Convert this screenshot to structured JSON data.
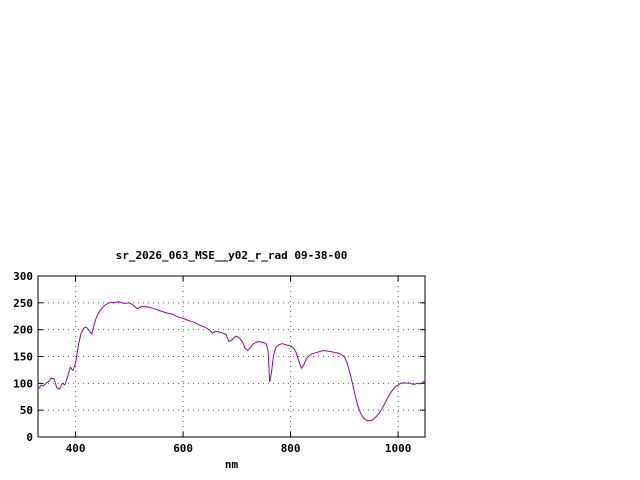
{
  "page": {
    "background": "#ffffff"
  },
  "chart_data": {
    "type": "line",
    "title": "sr_2026_063_MSE__y02_r_rad 09-38-00",
    "xlabel": "nm",
    "ylabel": "",
    "xlim": [
      330,
      1050
    ],
    "ylim": [
      0,
      300
    ],
    "xticks": [
      400,
      600,
      800,
      1000
    ],
    "yticks": [
      0,
      50,
      100,
      150,
      200,
      250,
      300
    ],
    "grid": true,
    "legend": false,
    "axis_color": "#000000",
    "grid_color": "#606060",
    "series": [
      {
        "name": "spectral_radiance",
        "color": "#a000a0",
        "x": [
          332,
          336,
          340,
          345,
          350,
          355,
          360,
          365,
          370,
          375,
          380,
          385,
          390,
          395,
          400,
          405,
          410,
          415,
          420,
          425,
          430,
          435,
          440,
          445,
          450,
          455,
          460,
          465,
          470,
          480,
          490,
          500,
          505,
          510,
          515,
          520,
          525,
          530,
          540,
          550,
          560,
          570,
          580,
          590,
          600,
          610,
          620,
          630,
          640,
          650,
          655,
          660,
          665,
          670,
          680,
          685,
          690,
          695,
          700,
          705,
          710,
          715,
          720,
          725,
          730,
          735,
          740,
          745,
          750,
          755,
          758,
          761,
          764,
          768,
          772,
          778,
          785,
          790,
          795,
          800,
          805,
          810,
          815,
          820,
          825,
          830,
          835,
          840,
          850,
          860,
          870,
          880,
          890,
          900,
          905,
          910,
          915,
          920,
          925,
          930,
          935,
          940,
          945,
          950,
          955,
          960,
          965,
          970,
          975,
          980,
          985,
          990,
          995,
          1000,
          1005,
          1010,
          1015,
          1020,
          1025,
          1030,
          1035,
          1040,
          1045,
          1048
        ],
        "y": [
          91,
          97,
          95,
          100,
          104,
          110,
          108,
          92,
          89,
          100,
          97,
          112,
          130,
          124,
          138,
          170,
          193,
          203,
          205,
          198,
          192,
          212,
          226,
          235,
          241,
          246,
          249,
          251,
          250,
          252,
          249,
          250,
          247,
          243,
          239,
          242,
          244,
          243,
          241,
          238,
          234,
          231,
          229,
          224,
          221,
          217,
          214,
          209,
          205,
          199,
          193,
          197,
          196,
          195,
          191,
          178,
          180,
          186,
          188,
          184,
          178,
          166,
          161,
          167,
          173,
          176,
          178,
          177,
          176,
          173,
          160,
          103,
          118,
          150,
          166,
          172,
          174,
          172,
          171,
          170,
          166,
          158,
          142,
          128,
          136,
          147,
          152,
          155,
          158,
          161,
          160,
          158,
          156,
          150,
          138,
          120,
          100,
          78,
          58,
          45,
          36,
          32,
          30,
          31,
          34,
          39,
          45,
          53,
          62,
          72,
          81,
          88,
          94,
          97,
          100,
          101,
          100,
          101,
          99,
          98,
          100,
          99,
          101,
          104
        ]
      }
    ]
  }
}
